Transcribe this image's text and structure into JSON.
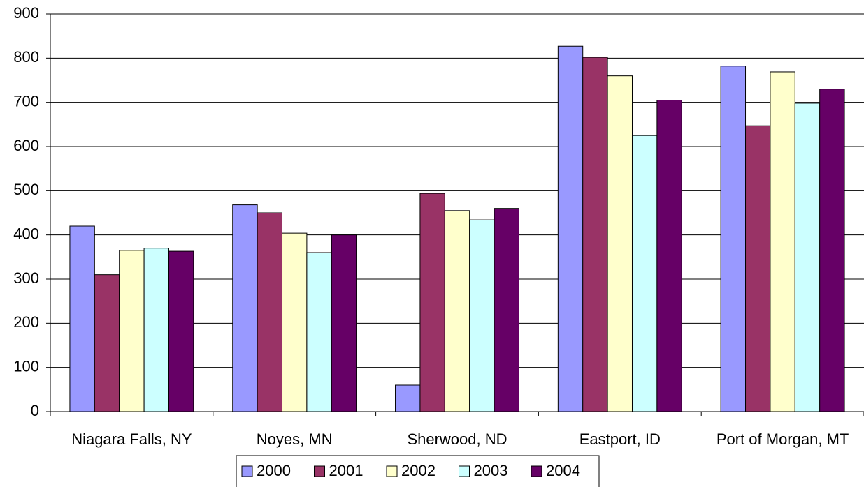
{
  "chart_data": {
    "type": "bar",
    "categories": [
      "Niagara Falls, NY",
      "Noyes, MN",
      "Sherwood, ND",
      "Eastport, ID",
      "Port of Morgan, MT"
    ],
    "series": [
      {
        "name": "2000",
        "color": "#9999ff",
        "values": [
          420,
          468,
          60,
          827,
          782
        ]
      },
      {
        "name": "2001",
        "color": "#993366",
        "values": [
          310,
          450,
          494,
          802,
          647
        ]
      },
      {
        "name": "2002",
        "color": "#ffffcc",
        "values": [
          365,
          404,
          455,
          760,
          769
        ]
      },
      {
        "name": "2003",
        "color": "#ccffff",
        "values": [
          370,
          360,
          434,
          625,
          698
        ]
      },
      {
        "name": "2004",
        "color": "#660066",
        "values": [
          363,
          400,
          460,
          705,
          730
        ]
      }
    ],
    "ylim": [
      0,
      900
    ],
    "yticks": [
      0,
      100,
      200,
      300,
      400,
      500,
      600,
      700,
      800,
      900
    ],
    "grid": true,
    "legend": "bottom"
  }
}
